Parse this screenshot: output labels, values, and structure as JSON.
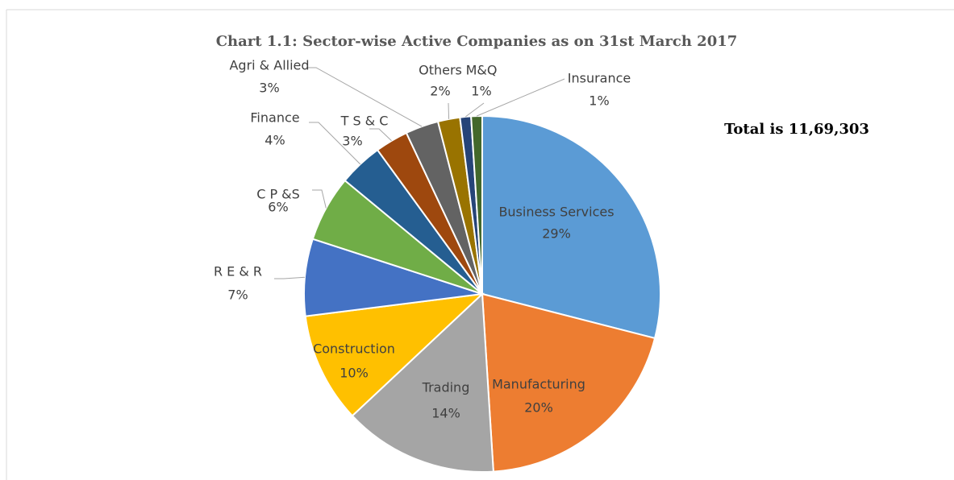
{
  "chart_data": {
    "type": "pie",
    "title": "Chart 1.1: Sector-wise Active Companies as on 31st March 2017",
    "annotation": "Total is 11,69,303",
    "categories": [
      "Business Services",
      "Manufacturing",
      "Trading",
      "Construction",
      "R E & R",
      "C P &S",
      "Finance",
      "T S & C",
      "Agri & Allied",
      "Others",
      "M&Q",
      "Insurance"
    ],
    "values": [
      29,
      20,
      14,
      10,
      7,
      6,
      4,
      3,
      3,
      2,
      1,
      1
    ],
    "value_labels": [
      "29%",
      "20%",
      "14%",
      "10%",
      "7%",
      "6%",
      "4%",
      "3%",
      "3%",
      "2%",
      "1%",
      "1%"
    ],
    "colors": [
      "#5b9bd5",
      "#ed7d31",
      "#a5a5a5",
      "#ffc000",
      "#4472c4",
      "#70ad47",
      "#255e91",
      "#9e480e",
      "#636363",
      "#997300",
      "#264478",
      "#43682b"
    ]
  }
}
